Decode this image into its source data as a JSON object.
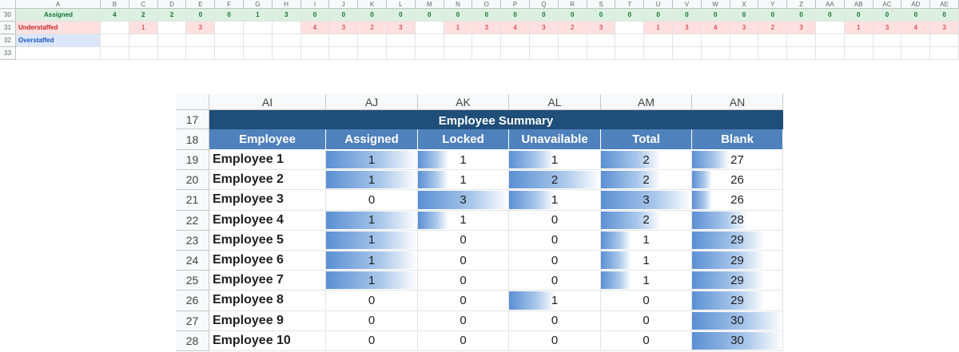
{
  "top_strip": {
    "columns": [
      "A",
      "B",
      "C",
      "D",
      "E",
      "F",
      "G",
      "H",
      "I",
      "J",
      "K",
      "L",
      "M",
      "N",
      "O",
      "P",
      "Q",
      "R",
      "S",
      "T",
      "U",
      "V",
      "W",
      "X",
      "Y",
      "Z",
      "AA",
      "AB",
      "AC",
      "AD",
      "AE"
    ],
    "rows": [
      {
        "num": "30",
        "label": "Assigned",
        "kind": "assigned",
        "values": [
          "4",
          "2",
          "2",
          "0",
          "0",
          "1",
          "3",
          "0",
          "0",
          "0",
          "0",
          "0",
          "0",
          "0",
          "0",
          "0",
          "0",
          "0",
          "0",
          "0",
          "0",
          "0",
          "0",
          "0",
          "0",
          "0",
          "0",
          "0",
          "0",
          "0"
        ]
      },
      {
        "num": "31",
        "label": "Understaffed",
        "kind": "under",
        "values": [
          "",
          "1",
          "",
          "3",
          "",
          "",
          "",
          "4",
          "3",
          "2",
          "3",
          "",
          "1",
          "3",
          "4",
          "3",
          "2",
          "3",
          "",
          "1",
          "3",
          "4",
          "3",
          "2",
          "3",
          "",
          "1",
          "3",
          "4",
          "3"
        ]
      },
      {
        "num": "32",
        "label": "Overstaffed",
        "kind": "over",
        "values": []
      },
      {
        "num": "33",
        "label": "",
        "kind": "empty",
        "values": []
      }
    ]
  },
  "summary": {
    "columns": [
      "AI",
      "AJ",
      "AK",
      "AL",
      "AM",
      "AN"
    ],
    "title_row_num": "17",
    "title": "Employee Summary",
    "header_row_num": "18",
    "headers": [
      "Employee",
      "Assigned",
      "Locked",
      "Unavailable",
      "Total",
      "Blank"
    ],
    "rows": [
      {
        "num": "19",
        "name": "Employee 1",
        "assigned": 1,
        "locked": 1,
        "unavailable": 1,
        "total": 2,
        "blank": 27
      },
      {
        "num": "20",
        "name": "Employee 2",
        "assigned": 1,
        "locked": 1,
        "unavailable": 2,
        "total": 2,
        "blank": 26
      },
      {
        "num": "21",
        "name": "Employee 3",
        "assigned": 0,
        "locked": 3,
        "unavailable": 1,
        "total": 3,
        "blank": 26
      },
      {
        "num": "22",
        "name": "Employee 4",
        "assigned": 1,
        "locked": 1,
        "unavailable": 0,
        "total": 2,
        "blank": 28
      },
      {
        "num": "23",
        "name": "Employee 5",
        "assigned": 1,
        "locked": 0,
        "unavailable": 0,
        "total": 1,
        "blank": 29
      },
      {
        "num": "24",
        "name": "Employee 6",
        "assigned": 1,
        "locked": 0,
        "unavailable": 0,
        "total": 1,
        "blank": 29
      },
      {
        "num": "25",
        "name": "Employee 7",
        "assigned": 1,
        "locked": 0,
        "unavailable": 0,
        "total": 1,
        "blank": 29
      },
      {
        "num": "26",
        "name": "Employee 8",
        "assigned": 0,
        "locked": 0,
        "unavailable": 1,
        "total": 0,
        "blank": 29
      },
      {
        "num": "27",
        "name": "Employee 9",
        "assigned": 0,
        "locked": 0,
        "unavailable": 0,
        "total": 0,
        "blank": 30
      },
      {
        "num": "28",
        "name": "Employee 10",
        "assigned": 0,
        "locked": 0,
        "unavailable": 0,
        "total": 0,
        "blank": 30
      }
    ],
    "data_bar_color": "#5b8fd3",
    "title_color": "#1f4e79",
    "header_color": "#4f81bd"
  }
}
